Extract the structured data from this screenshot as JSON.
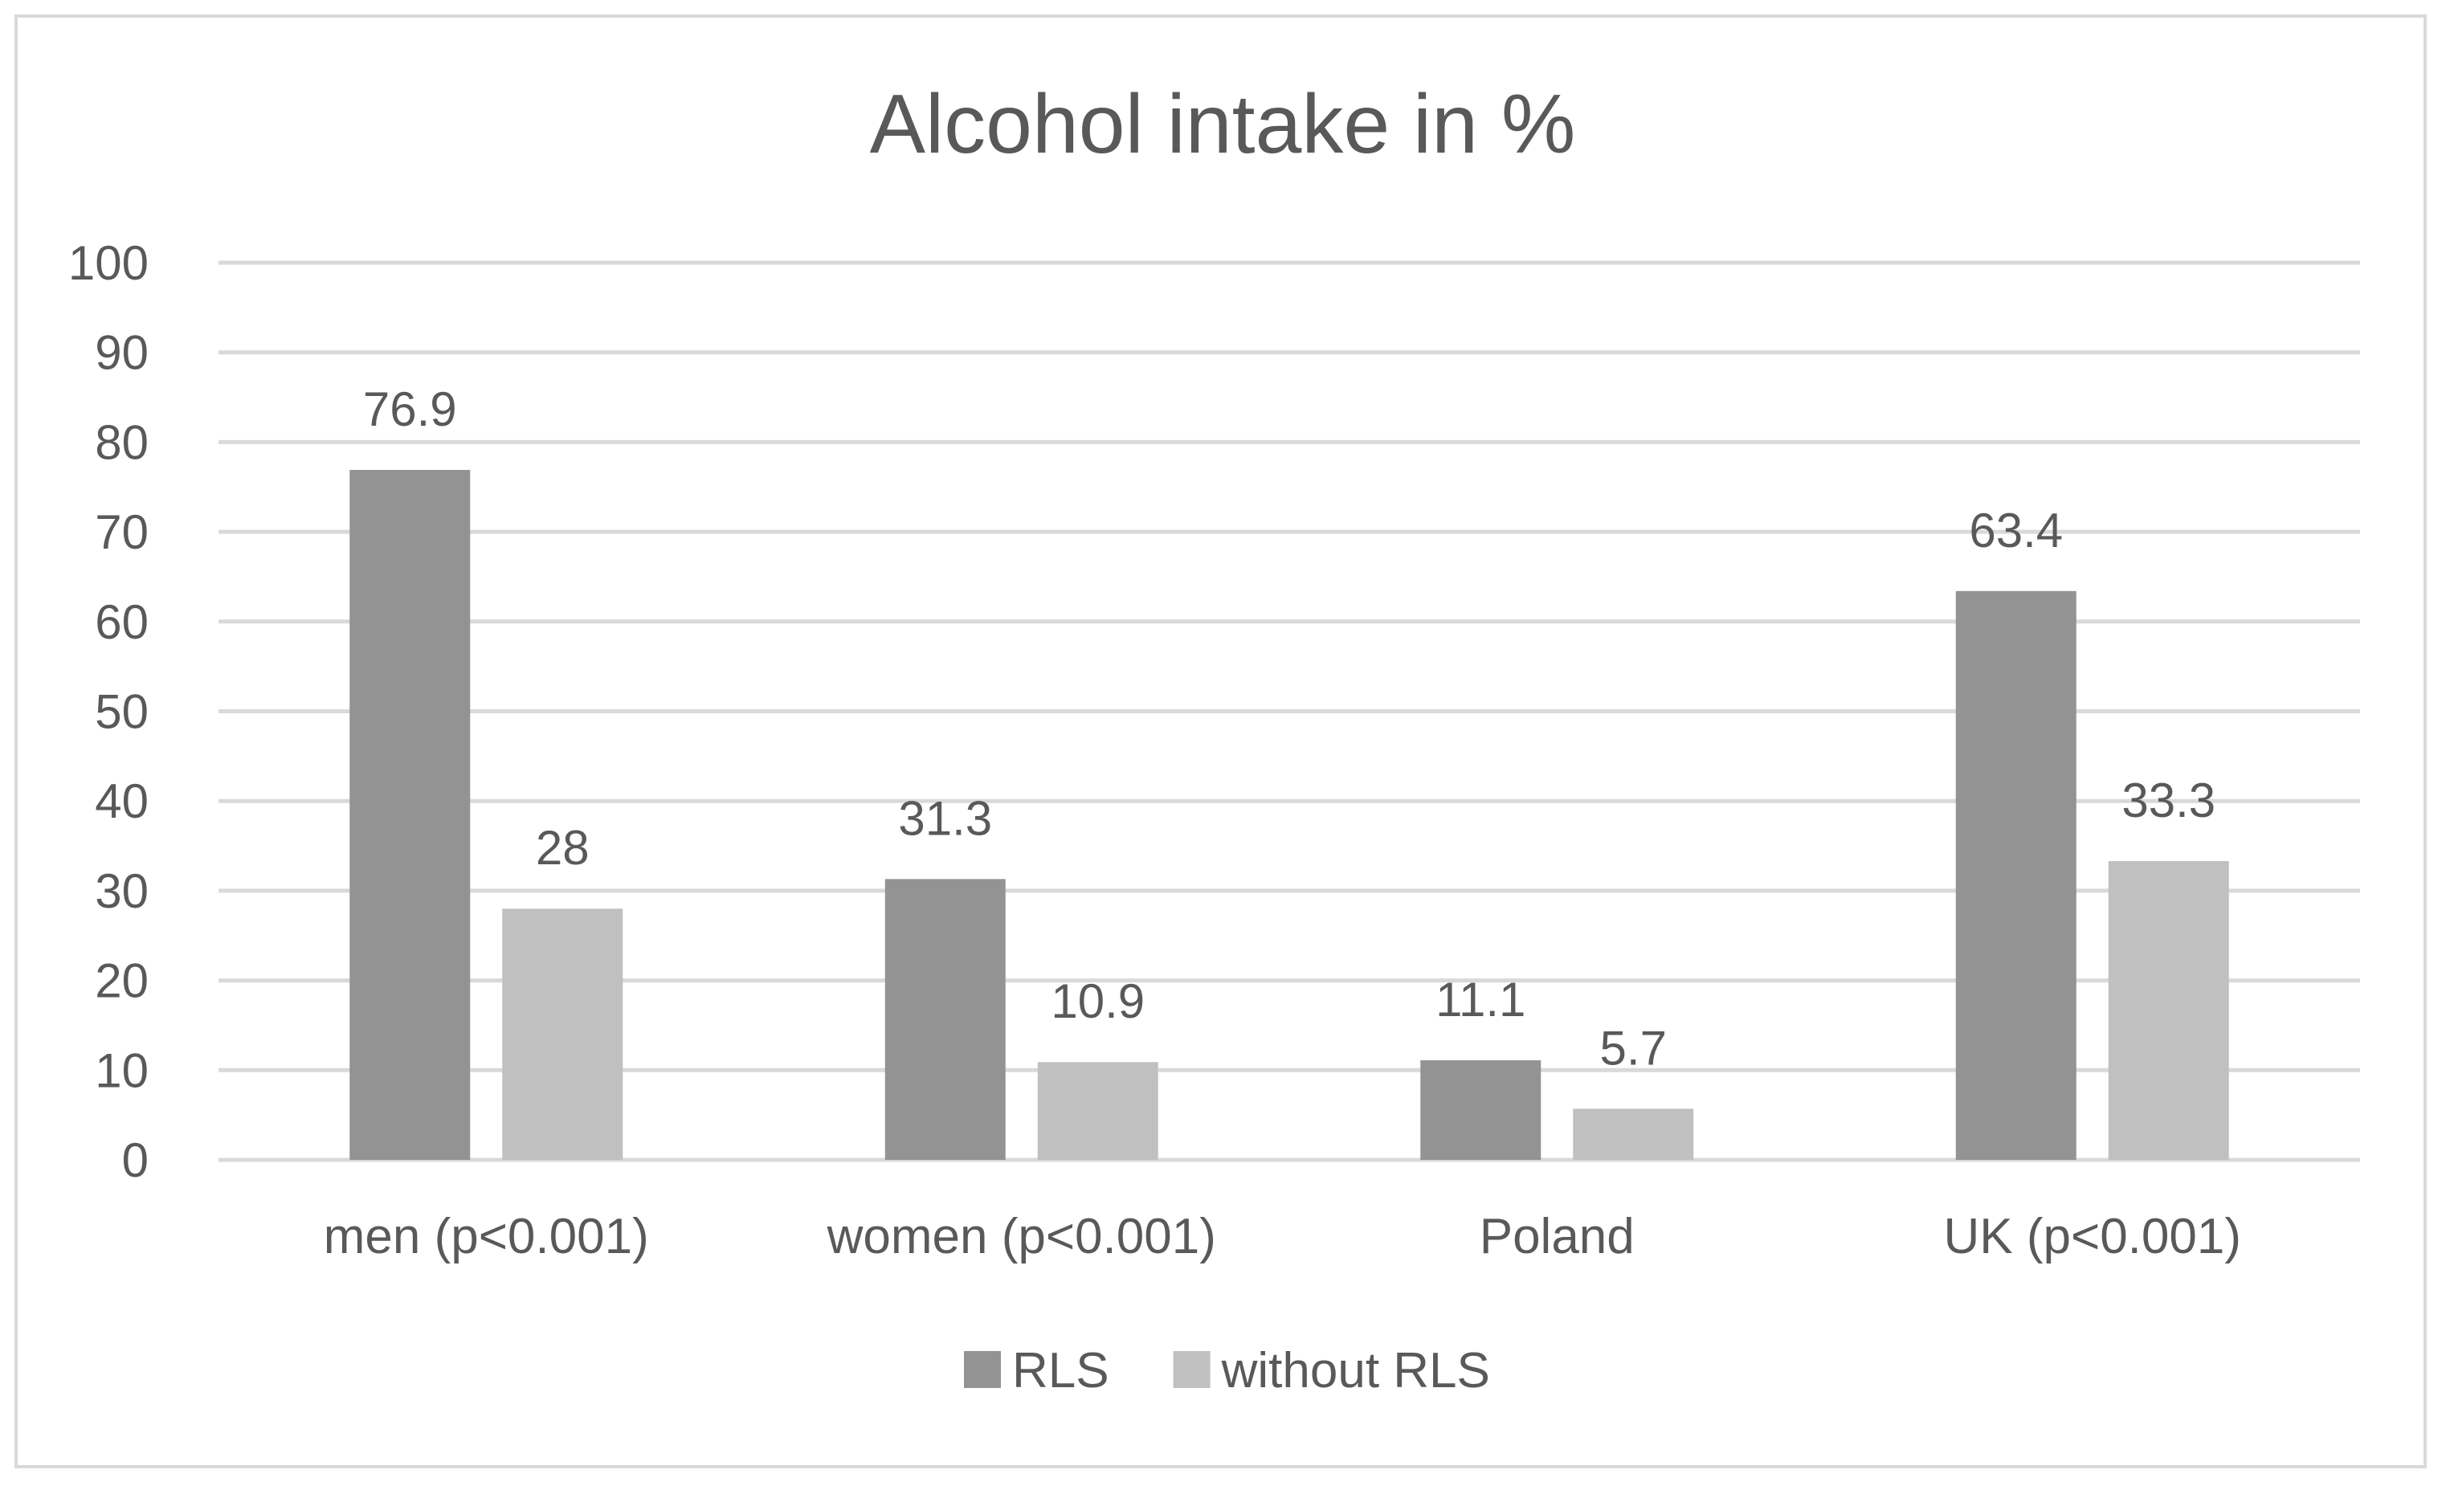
{
  "chart_data": {
    "type": "bar",
    "title": "Alcohol intake in %",
    "xlabel": "",
    "ylabel": "",
    "categories": [
      "men (p<0.001)",
      "women (p<0.001)",
      "Poland",
      "UK (p<0.001)"
    ],
    "series": [
      {
        "name": "RLS",
        "values": [
          76.9,
          31.3,
          11.1,
          63.4
        ],
        "color": "#939393"
      },
      {
        "name": "without RLS",
        "values": [
          28,
          10.9,
          5.7,
          33.3
        ],
        "color": "#c0c0c0"
      }
    ],
    "ylim": [
      0,
      100
    ],
    "yticks": [
      0,
      10,
      20,
      30,
      40,
      50,
      60,
      70,
      80,
      90,
      100
    ],
    "grid": true,
    "legend": "bottom-center",
    "data_labels": true
  }
}
